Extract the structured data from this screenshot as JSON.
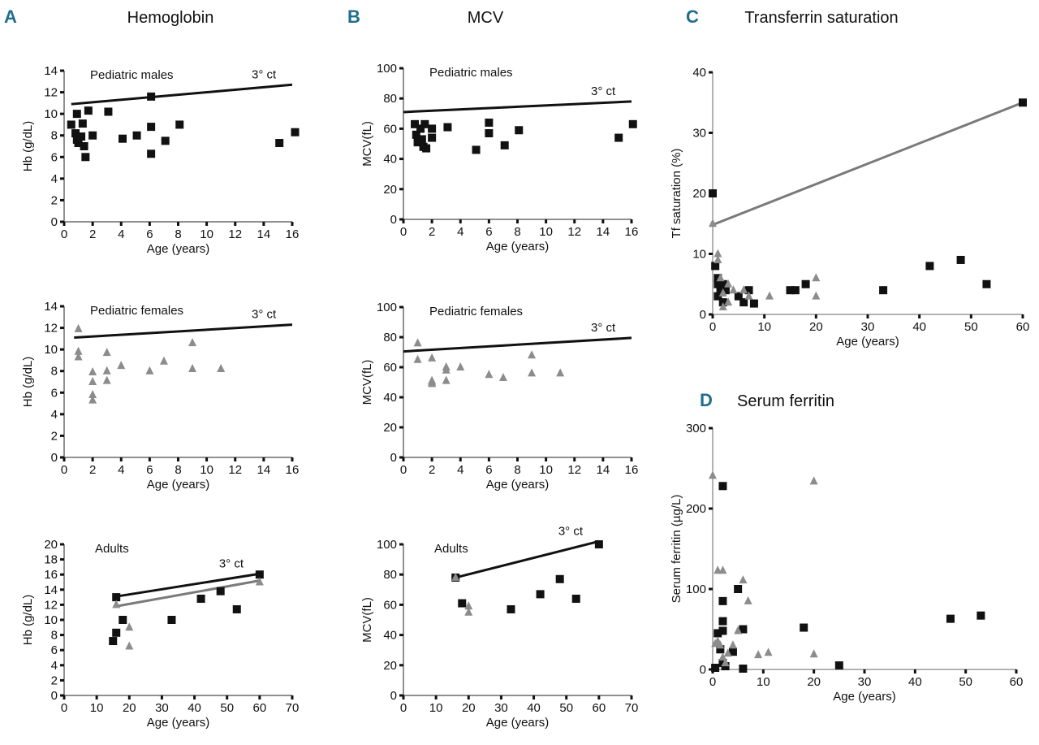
{
  "figure": {
    "letter_color": "#1f6e8c",
    "panels": [
      {
        "letter": "A",
        "title": "Hemoglobin"
      },
      {
        "letter": "B",
        "title": "MCV"
      },
      {
        "letter": "C",
        "title": "Transferrin saturation"
      },
      {
        "letter": "D",
        "title": "Serum ferritin"
      }
    ]
  },
  "colors": {
    "male_marker": "#111111",
    "female_marker": "#8c8c8c",
    "male_line": "#111111",
    "female_line": "#7a7a7a"
  },
  "chart_data": [
    {
      "type": "scatter",
      "subtitle": "Pediatric males",
      "xlabel": "Age (years)",
      "ylabel": "Hb (g/dL)",
      "xlim": [
        0,
        16
      ],
      "ylim": [
        0,
        14
      ],
      "xstep": 2,
      "ystep": 2,
      "annotation": "3° ct",
      "series": [
        {
          "marker": "square",
          "color": "#111111",
          "points": [
            [
              0.5,
              9.0
            ],
            [
              0.8,
              8.2
            ],
            [
              0.9,
              10.0
            ],
            [
              0.9,
              7.6
            ],
            [
              1.0,
              7.3
            ],
            [
              1.2,
              7.9
            ],
            [
              1.3,
              9.1
            ],
            [
              1.4,
              7.0
            ],
            [
              1.5,
              6.0
            ],
            [
              1.7,
              10.3
            ],
            [
              2,
              8.0
            ],
            [
              3.1,
              10.2
            ],
            [
              4.1,
              7.7
            ],
            [
              5.1,
              8.0
            ],
            [
              6.1,
              11.6
            ],
            [
              6.1,
              8.8
            ],
            [
              6.1,
              6.3
            ],
            [
              7.1,
              7.5
            ],
            [
              8.1,
              9.0
            ],
            [
              15.1,
              7.3
            ],
            [
              16.2,
              8.3
            ]
          ]
        }
      ],
      "lines": [
        {
          "color": "#111111",
          "points": [
            [
              0.5,
              10.9
            ],
            [
              16,
              12.7
            ]
          ]
        }
      ]
    },
    {
      "type": "scatter",
      "subtitle": "Pediatric females",
      "xlabel": "Age (years)",
      "ylabel": "Hb (g/dL)",
      "xlim": [
        0,
        16
      ],
      "ylim": [
        0,
        14
      ],
      "xstep": 2,
      "ystep": 2,
      "annotation": "3° ct",
      "series": [
        {
          "marker": "triangle",
          "color": "#8c8c8c",
          "points": [
            [
              1,
              11.9
            ],
            [
              1,
              9.8
            ],
            [
              1,
              9.3
            ],
            [
              2,
              7.9
            ],
            [
              2,
              7.0
            ],
            [
              2,
              5.8
            ],
            [
              2,
              5.3
            ],
            [
              3,
              9.7
            ],
            [
              3,
              8.0
            ],
            [
              3,
              7.1
            ],
            [
              4,
              8.5
            ],
            [
              6,
              8.0
            ],
            [
              7,
              8.9
            ],
            [
              9,
              10.6
            ],
            [
              9,
              8.2
            ],
            [
              11,
              8.2
            ]
          ]
        }
      ],
      "lines": [
        {
          "color": "#111111",
          "points": [
            [
              0.7,
              11.1
            ],
            [
              16,
              12.3
            ]
          ]
        }
      ]
    },
    {
      "type": "scatter",
      "subtitle": "Adults",
      "xlabel": "Age (years)",
      "ylabel": "Hb (g/dL)",
      "xlim": [
        0,
        70
      ],
      "ylim": [
        0,
        20
      ],
      "xstep": 10,
      "ystep": 2,
      "annotation": "3° ct",
      "series": [
        {
          "marker": "square",
          "color": "#111111",
          "points": [
            [
              16,
              13
            ],
            [
              15,
              7.2
            ],
            [
              16,
              8.3
            ],
            [
              18,
              10
            ],
            [
              33,
              10
            ],
            [
              42,
              12.8
            ],
            [
              48,
              13.8
            ],
            [
              53,
              11.4
            ],
            [
              60,
              16
            ]
          ]
        },
        {
          "marker": "triangle",
          "color": "#8c8c8c",
          "points": [
            [
              16,
              12
            ],
            [
              20,
              9
            ],
            [
              20,
              6.5
            ],
            [
              60,
              15
            ]
          ]
        }
      ],
      "lines": [
        {
          "color": "#111111",
          "points": [
            [
              16,
              13.1
            ],
            [
              60,
              16.1
            ]
          ]
        },
        {
          "color": "#7a7a7a",
          "points": [
            [
              16,
              11.8
            ],
            [
              60,
              15.2
            ]
          ]
        }
      ]
    },
    {
      "type": "scatter",
      "subtitle": "Pediatric males",
      "xlabel": "Age (years)",
      "ylabel": "MCV(fL)",
      "xlim": [
        0,
        16
      ],
      "ylim": [
        0,
        100
      ],
      "xstep": 2,
      "ystep": 20,
      "annotation": "3° ct",
      "series": [
        {
          "marker": "square",
          "color": "#111111",
          "points": [
            [
              0.8,
              63
            ],
            [
              0.9,
              56
            ],
            [
              1,
              51
            ],
            [
              1.2,
              60
            ],
            [
              1.3,
              53
            ],
            [
              1.5,
              63
            ],
            [
              1.4,
              48
            ],
            [
              1.6,
              47
            ],
            [
              2,
              60
            ],
            [
              2,
              54
            ],
            [
              3.1,
              61
            ],
            [
              5.1,
              46
            ],
            [
              6,
              64
            ],
            [
              6,
              57
            ],
            [
              7.1,
              49
            ],
            [
              8.1,
              59
            ],
            [
              15.1,
              54
            ],
            [
              16.1,
              63
            ]
          ]
        }
      ],
      "lines": [
        {
          "color": "#111111",
          "points": [
            [
              0,
              71
            ],
            [
              16,
              78
            ]
          ]
        }
      ]
    },
    {
      "type": "scatter",
      "subtitle": "Pediatric females",
      "xlabel": "Age (years)",
      "ylabel": "MCV(fL)",
      "xlim": [
        0,
        16
      ],
      "ylim": [
        0,
        100
      ],
      "xstep": 2,
      "ystep": 20,
      "annotation": "3° ct",
      "series": [
        {
          "marker": "triangle",
          "color": "#8c8c8c",
          "points": [
            [
              1,
              76
            ],
            [
              1,
              65
            ],
            [
              2,
              66
            ],
            [
              2,
              51
            ],
            [
              2,
              50
            ],
            [
              2,
              49
            ],
            [
              3,
              60
            ],
            [
              3,
              58
            ],
            [
              3,
              51
            ],
            [
              4,
              60
            ],
            [
              6,
              55
            ],
            [
              7,
              53
            ],
            [
              9,
              68
            ],
            [
              9,
              56
            ],
            [
              11,
              56
            ]
          ]
        }
      ],
      "lines": [
        {
          "color": "#111111",
          "points": [
            [
              0,
              70.5
            ],
            [
              16,
              79.5
            ]
          ]
        }
      ]
    },
    {
      "type": "scatter",
      "subtitle": "Adults",
      "xlabel": "Age (years)",
      "ylabel": "MCV(fL)",
      "xlim": [
        0,
        70
      ],
      "ylim": [
        0,
        100
      ],
      "xstep": 10,
      "ystep": 20,
      "annotation": "3° ct",
      "series": [
        {
          "marker": "square",
          "color": "#111111",
          "points": [
            [
              16,
              78
            ],
            [
              18,
              61
            ],
            [
              33,
              57
            ],
            [
              42,
              67
            ],
            [
              48,
              77
            ],
            [
              53,
              64
            ],
            [
              60,
              100
            ]
          ]
        },
        {
          "marker": "triangle",
          "color": "#8c8c8c",
          "points": [
            [
              16,
              78
            ],
            [
              20,
              59
            ],
            [
              20,
              55
            ]
          ]
        }
      ],
      "lines": [
        {
          "color": "#111111",
          "points": [
            [
              16,
              78
            ],
            [
              60,
              102
            ]
          ]
        }
      ]
    },
    {
      "type": "scatter",
      "subtitle": "",
      "xlabel": "Age (years)",
      "ylabel": "Tf saturation (%)",
      "xlim": [
        0,
        60
      ],
      "ylim": [
        0,
        40
      ],
      "xstep": 10,
      "ystep": 10,
      "annotation": "",
      "series": [
        {
          "marker": "square",
          "color": "#111111",
          "points": [
            [
              0,
              20
            ],
            [
              0.5,
              8
            ],
            [
              1,
              6
            ],
            [
              1,
              5
            ],
            [
              1,
              3
            ],
            [
              1.5,
              4
            ],
            [
              2,
              5
            ],
            [
              2,
              2
            ],
            [
              2.5,
              4
            ],
            [
              5,
              3
            ],
            [
              6,
              2
            ],
            [
              7,
              4
            ],
            [
              8,
              1.8
            ],
            [
              15,
              4
            ],
            [
              16,
              4
            ],
            [
              18,
              5
            ],
            [
              33,
              4
            ],
            [
              42,
              8
            ],
            [
              48,
              9
            ],
            [
              53,
              5
            ],
            [
              60,
              35
            ]
          ]
        },
        {
          "marker": "triangle",
          "color": "#8c8c8c",
          "points": [
            [
              0,
              15
            ],
            [
              1,
              10
            ],
            [
              1,
              9
            ],
            [
              1.5,
              6
            ],
            [
              2,
              3.5
            ],
            [
              2,
              1.2
            ],
            [
              3,
              5
            ],
            [
              3,
              2
            ],
            [
              4,
              4
            ],
            [
              6,
              4
            ],
            [
              7,
              3
            ],
            [
              11,
              3
            ],
            [
              20,
              6
            ],
            [
              20,
              3
            ]
          ]
        }
      ],
      "lines": [
        {
          "color": "#7a7a7a",
          "points": [
            [
              0,
              14.8
            ],
            [
              60,
              35
            ]
          ]
        }
      ]
    },
    {
      "type": "scatter",
      "subtitle": "",
      "xlabel": "Age (years)",
      "ylabel": "Serum ferritin (µg/L)",
      "xlim": [
        0,
        60
      ],
      "ylim": [
        0,
        300
      ],
      "xstep": 10,
      "ystep": 100,
      "annotation": "",
      "series": [
        {
          "marker": "square",
          "color": "#111111",
          "points": [
            [
              0.5,
              2
            ],
            [
              1,
              45
            ],
            [
              1.5,
              25
            ],
            [
              2,
              228
            ],
            [
              2,
              85
            ],
            [
              2,
              60
            ],
            [
              2,
              48
            ],
            [
              2,
              8
            ],
            [
              2.5,
              4
            ],
            [
              5,
              100
            ],
            [
              4,
              22
            ],
            [
              6,
              50
            ],
            [
              6,
              1
            ],
            [
              18,
              52
            ],
            [
              25,
              5
            ],
            [
              47,
              63
            ],
            [
              53,
              67
            ]
          ]
        },
        {
          "marker": "triangle",
          "color": "#8c8c8c",
          "points": [
            [
              0,
              241
            ],
            [
              1,
              123
            ],
            [
              2,
              123
            ],
            [
              0.5,
              32
            ],
            [
              1,
              35
            ],
            [
              1.5,
              30
            ],
            [
              2,
              15
            ],
            [
              3,
              20
            ],
            [
              4,
              30
            ],
            [
              5,
              48
            ],
            [
              6,
              111
            ],
            [
              7,
              85
            ],
            [
              9,
              18
            ],
            [
              11,
              21
            ],
            [
              20,
              234
            ],
            [
              20,
              19
            ],
            [
              2.5,
              8
            ]
          ]
        }
      ],
      "lines": []
    }
  ]
}
